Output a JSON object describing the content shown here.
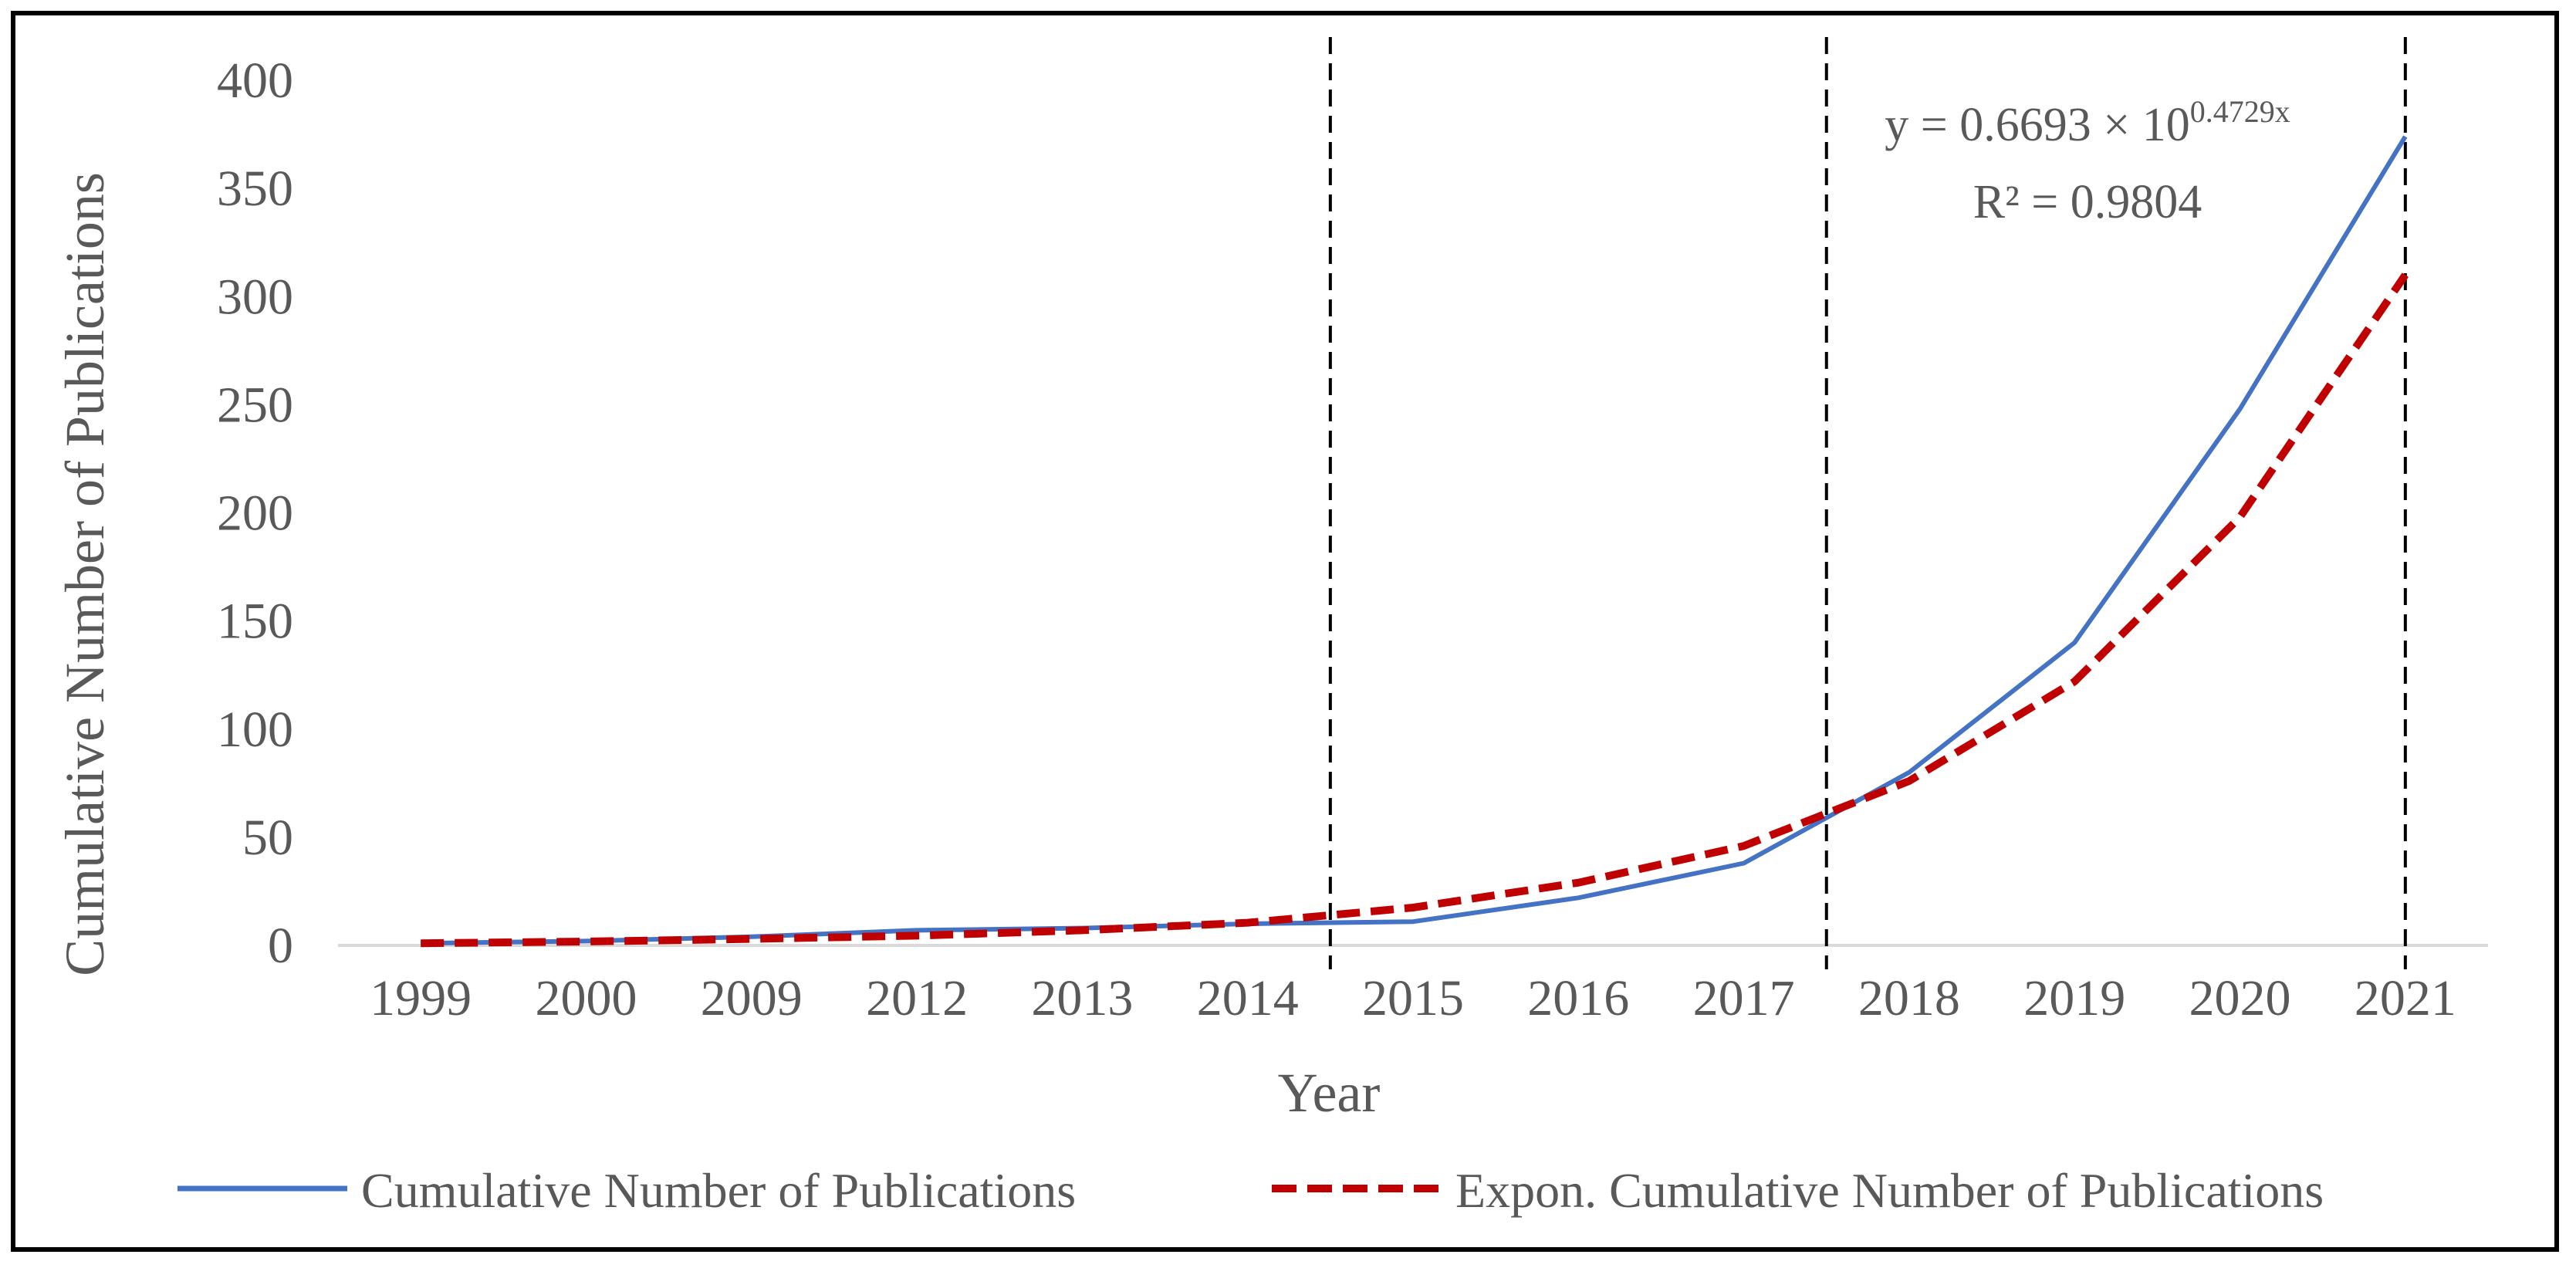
{
  "chart_data": {
    "type": "line",
    "xlabel": "Year",
    "ylabel": "Cumulative Number of Publications",
    "categories": [
      "1999",
      "2000",
      "2009",
      "2012",
      "2013",
      "2014",
      "2015",
      "2016",
      "2017",
      "2018",
      "2019",
      "2020",
      "2021"
    ],
    "ylim": [
      0,
      400
    ],
    "yticks": [
      "0",
      "50",
      "100",
      "150",
      "200",
      "250",
      "300",
      "350",
      "400"
    ],
    "series": [
      {
        "name": "Cumulative Number of Publications",
        "style": "solid",
        "color": "#4472C4",
        "values": [
          1,
          2,
          4,
          7,
          8,
          10,
          11,
          22,
          38,
          80,
          140,
          248,
          374
        ]
      },
      {
        "name": "Expon. Cumulative Number of Publications",
        "style": "dashed",
        "color": "#C00000",
        "values": [
          1.0,
          1.8,
          3.0,
          4.5,
          7.0,
          10.5,
          17.5,
          29,
          46,
          76,
          122,
          198,
          310
        ]
      }
    ],
    "vertical_dividers_after": [
      "2014",
      "2017"
    ],
    "vertical_divider_at": "2021",
    "annotation": {
      "eq_prefix": "y = 0.6693 × 10",
      "eq_exponent": "0.4729x",
      "r_squared": "R² = 0.9804"
    },
    "legend_position": "bottom",
    "grid": false
  }
}
